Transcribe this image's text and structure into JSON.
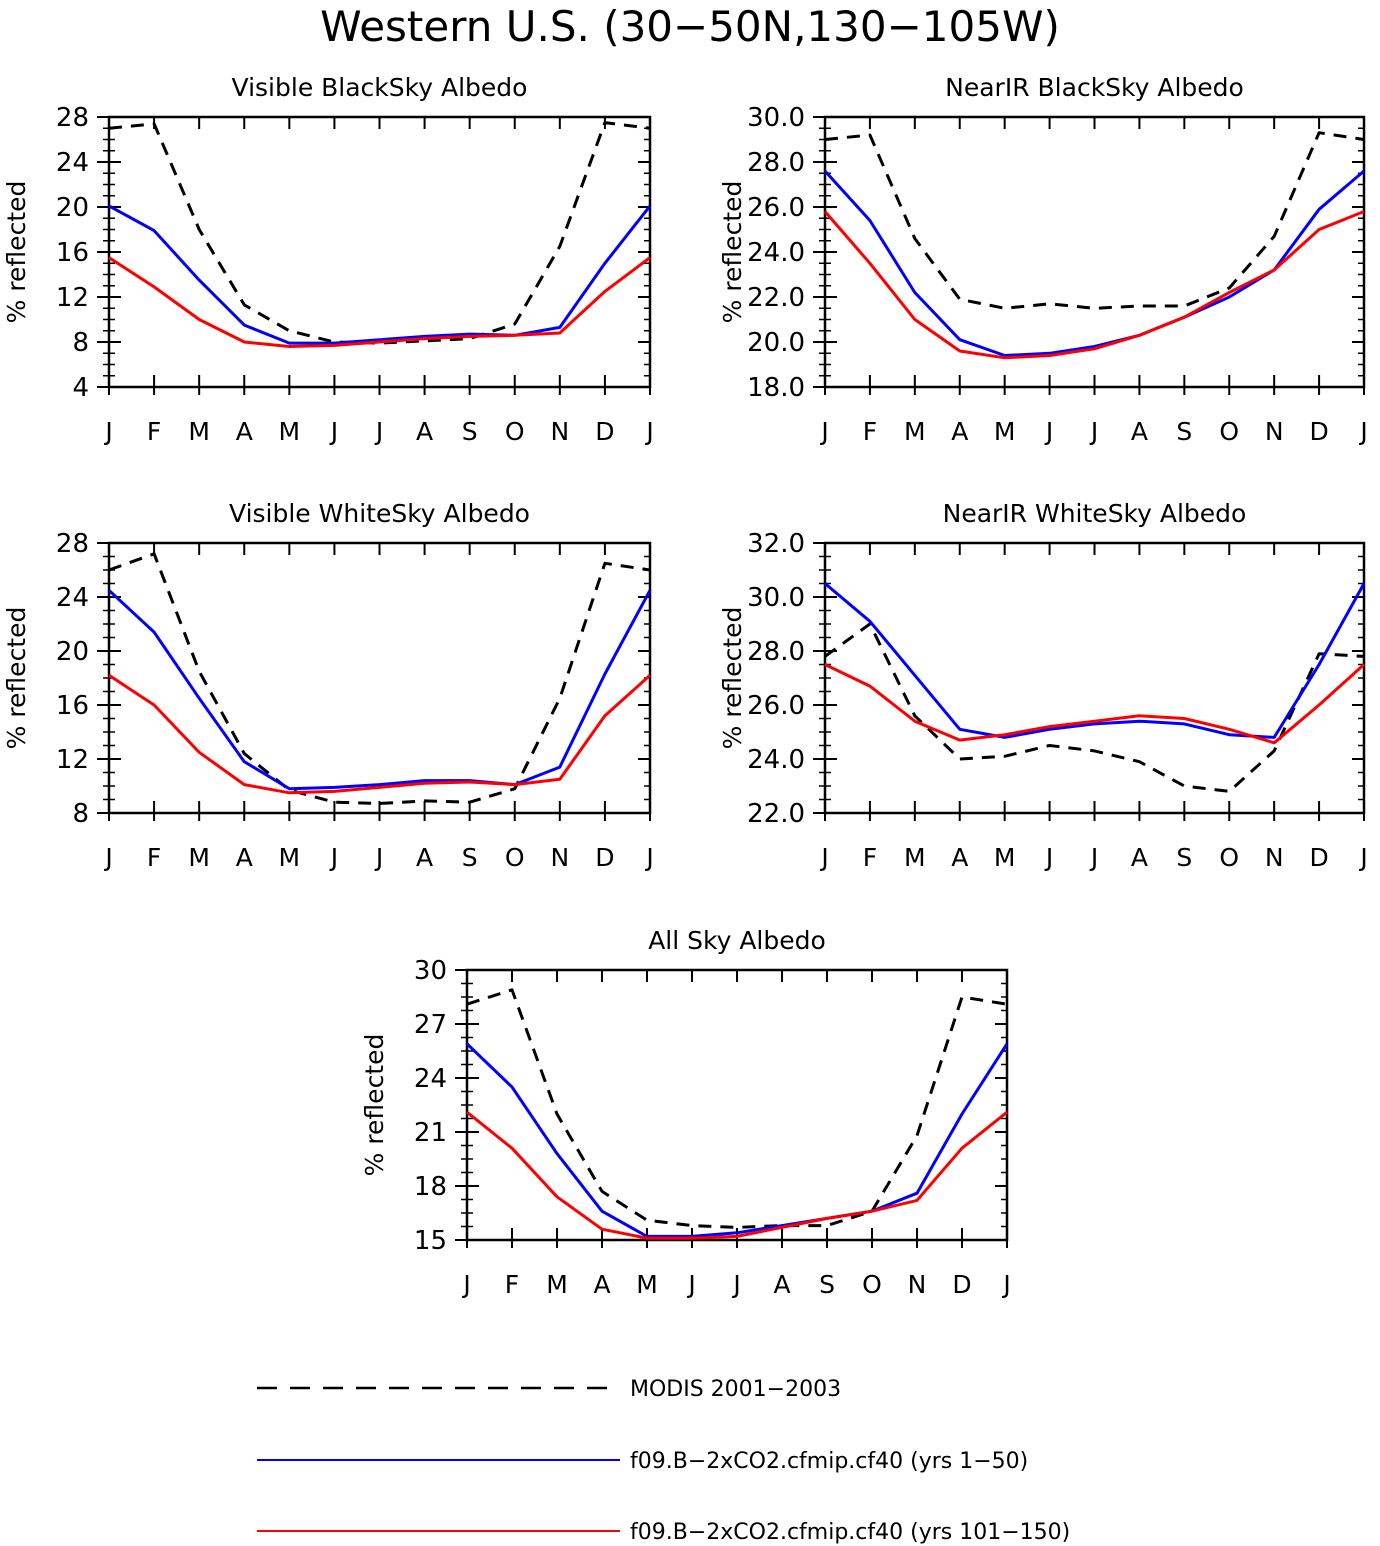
{
  "figure": {
    "title": "Western U.S. (30−50N,130−105W)",
    "colors": {
      "modis": "#000000",
      "run1": "#0000ff",
      "run2": "#ff0000"
    }
  },
  "legend": {
    "entries": [
      {
        "key": "modis",
        "label": "MODIS 2001−2003",
        "style": "dashed"
      },
      {
        "key": "run1",
        "label": "f09.B−2xCO2.cfmip.cf40 (yrs 1−50)",
        "style": "solid"
      },
      {
        "key": "run2",
        "label": "f09.B−2xCO2.cfmip.cf40 (yrs 101−150)",
        "style": "solid"
      }
    ]
  },
  "chart_data": [
    {
      "type": "line",
      "title": "Visible BlackSky Albedo",
      "ylabel": "% reflected",
      "categories": [
        "J",
        "F",
        "M",
        "A",
        "M",
        "J",
        "J",
        "A",
        "S",
        "O",
        "N",
        "D",
        "J"
      ],
      "ylim": [
        4,
        28
      ],
      "yticks": [
        "4",
        "8",
        "12",
        "16",
        "20",
        "24",
        "28"
      ],
      "series": [
        {
          "key": "modis",
          "values": [
            27.0,
            27.4,
            18.0,
            11.3,
            9.0,
            8.0,
            7.9,
            8.1,
            8.3,
            9.6,
            16.5,
            27.5,
            27.0
          ]
        },
        {
          "key": "run1",
          "values": [
            20.1,
            17.9,
            13.5,
            9.5,
            7.9,
            7.9,
            8.2,
            8.5,
            8.7,
            8.6,
            9.3,
            15.0,
            20.1
          ]
        },
        {
          "key": "run2",
          "values": [
            15.5,
            12.9,
            10.0,
            8.0,
            7.6,
            7.7,
            8.0,
            8.3,
            8.5,
            8.6,
            8.8,
            12.5,
            15.5
          ]
        }
      ]
    },
    {
      "type": "line",
      "title": "NearIR BlackSky Albedo",
      "ylabel": "% reflected",
      "categories": [
        "J",
        "F",
        "M",
        "A",
        "M",
        "J",
        "J",
        "A",
        "S",
        "O",
        "N",
        "D",
        "J"
      ],
      "ylim": [
        18,
        30
      ],
      "yticks": [
        "18.0",
        "20.0",
        "22.0",
        "24.0",
        "26.0",
        "28.0",
        "30.0"
      ],
      "series": [
        {
          "key": "modis",
          "values": [
            29.0,
            29.2,
            24.6,
            21.9,
            21.5,
            21.7,
            21.5,
            21.6,
            21.6,
            22.4,
            24.7,
            29.3,
            29.0
          ]
        },
        {
          "key": "run1",
          "values": [
            27.6,
            25.4,
            22.2,
            20.1,
            19.4,
            19.5,
            19.8,
            20.3,
            21.1,
            22.0,
            23.2,
            25.9,
            27.6
          ]
        },
        {
          "key": "run2",
          "values": [
            25.8,
            23.5,
            21.0,
            19.6,
            19.3,
            19.4,
            19.7,
            20.3,
            21.1,
            22.2,
            23.2,
            25.0,
            25.8
          ]
        }
      ]
    },
    {
      "type": "line",
      "title": "Visible WhiteSky Albedo",
      "ylabel": "% reflected",
      "categories": [
        "J",
        "F",
        "M",
        "A",
        "M",
        "J",
        "J",
        "A",
        "S",
        "O",
        "N",
        "D",
        "J"
      ],
      "ylim": [
        8,
        28
      ],
      "yticks": [
        "8",
        "12",
        "16",
        "20",
        "24",
        "28"
      ],
      "series": [
        {
          "key": "modis",
          "values": [
            26.0,
            27.2,
            18.5,
            12.4,
            9.7,
            8.8,
            8.7,
            8.9,
            8.8,
            9.8,
            16.5,
            26.5,
            26.0
          ]
        },
        {
          "key": "run1",
          "values": [
            24.5,
            21.4,
            16.5,
            11.8,
            9.8,
            9.9,
            10.1,
            10.4,
            10.4,
            10.1,
            11.4,
            18.3,
            24.5
          ]
        },
        {
          "key": "run2",
          "values": [
            18.2,
            16.0,
            12.5,
            10.1,
            9.5,
            9.6,
            9.9,
            10.2,
            10.3,
            10.1,
            10.5,
            15.2,
            18.2
          ]
        }
      ]
    },
    {
      "type": "line",
      "title": "NearIR WhiteSky Albedo",
      "ylabel": "% reflected",
      "categories": [
        "J",
        "F",
        "M",
        "A",
        "M",
        "J",
        "J",
        "A",
        "S",
        "O",
        "N",
        "D",
        "J"
      ],
      "ylim": [
        22,
        32
      ],
      "yticks": [
        "22.0",
        "24.0",
        "26.0",
        "28.0",
        "30.0",
        "32.0"
      ],
      "series": [
        {
          "key": "modis",
          "values": [
            27.8,
            29.0,
            25.6,
            24.0,
            24.1,
            24.5,
            24.3,
            23.9,
            23.0,
            22.8,
            24.3,
            27.9,
            27.8
          ]
        },
        {
          "key": "run1",
          "values": [
            30.5,
            29.1,
            27.1,
            25.1,
            24.8,
            25.1,
            25.3,
            25.4,
            25.3,
            24.9,
            24.8,
            27.5,
            30.5
          ]
        },
        {
          "key": "run2",
          "values": [
            27.5,
            26.7,
            25.4,
            24.7,
            24.9,
            25.2,
            25.4,
            25.6,
            25.5,
            25.1,
            24.6,
            26.0,
            27.5
          ]
        }
      ]
    },
    {
      "type": "line",
      "title": "All Sky Albedo",
      "ylabel": "% reflected",
      "categories": [
        "J",
        "F",
        "M",
        "A",
        "M",
        "J",
        "J",
        "A",
        "S",
        "O",
        "N",
        "D",
        "J"
      ],
      "ylim": [
        15,
        30
      ],
      "yticks": [
        "15",
        "18",
        "21",
        "24",
        "27",
        "30"
      ],
      "series": [
        {
          "key": "modis",
          "values": [
            28.1,
            28.9,
            22.0,
            17.7,
            16.1,
            15.8,
            15.7,
            15.8,
            15.8,
            16.6,
            20.8,
            28.5,
            28.1
          ]
        },
        {
          "key": "run1",
          "values": [
            25.9,
            23.5,
            19.8,
            16.6,
            15.2,
            15.2,
            15.4,
            15.8,
            16.2,
            16.6,
            17.6,
            22.0,
            25.9
          ]
        },
        {
          "key": "run2",
          "values": [
            22.1,
            20.1,
            17.4,
            15.6,
            15.1,
            15.1,
            15.2,
            15.7,
            16.2,
            16.6,
            17.2,
            20.1,
            22.1
          ]
        }
      ]
    }
  ]
}
